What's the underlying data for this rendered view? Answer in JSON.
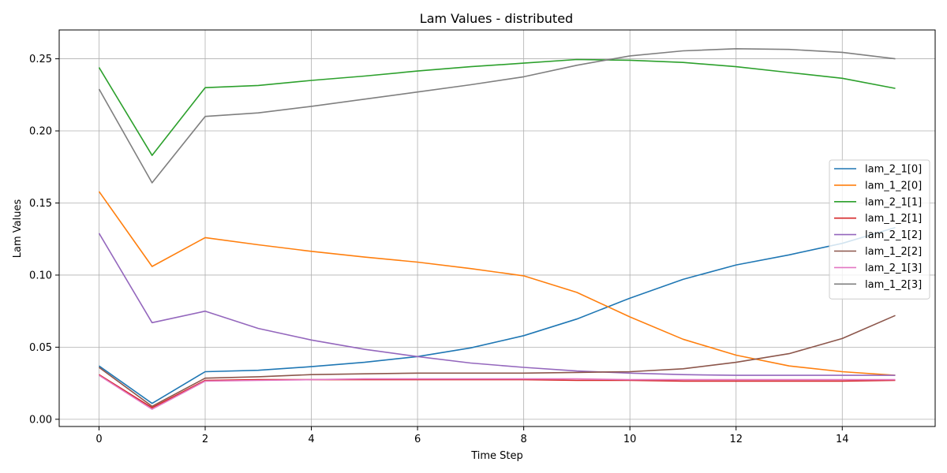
{
  "chart_data": {
    "type": "line",
    "title": "Lam Values - distributed",
    "xlabel": "Time Step",
    "ylabel": "Lam Values",
    "xlim": [
      -0.75,
      15.75
    ],
    "ylim": [
      -0.005,
      0.27
    ],
    "xticks": [
      "0",
      "2",
      "4",
      "6",
      "8",
      "10",
      "12",
      "14"
    ],
    "xtick_values": [
      0,
      2,
      4,
      6,
      8,
      10,
      12,
      14
    ],
    "yticks": [
      "0.00",
      "0.05",
      "0.10",
      "0.15",
      "0.20",
      "0.25"
    ],
    "ytick_values": [
      0.0,
      0.05,
      0.1,
      0.15,
      0.2,
      0.25
    ],
    "grid": true,
    "legend_position": "center-right",
    "x": [
      0,
      1,
      2,
      3,
      4,
      5,
      6,
      7,
      8,
      9,
      10,
      11,
      12,
      13,
      14,
      15
    ],
    "series": [
      {
        "name": "lam_2_1[0]",
        "color": "#1f77b4",
        "values": [
          0.037,
          0.011,
          0.033,
          0.034,
          0.0365,
          0.0395,
          0.0435,
          0.0495,
          0.058,
          0.0695,
          0.084,
          0.097,
          0.107,
          0.114,
          0.122,
          0.133
        ]
      },
      {
        "name": "lam_1_2[0]",
        "color": "#ff7f0e",
        "values": [
          0.158,
          0.106,
          0.126,
          0.121,
          0.1165,
          0.1125,
          0.109,
          0.1045,
          0.0995,
          0.088,
          0.071,
          0.0555,
          0.0445,
          0.037,
          0.033,
          0.0305
        ]
      },
      {
        "name": "lam_2_1[1]",
        "color": "#2ca02c",
        "values": [
          0.244,
          0.183,
          0.23,
          0.2315,
          0.235,
          0.238,
          0.2415,
          0.2445,
          0.247,
          0.2495,
          0.249,
          0.2475,
          0.2445,
          0.2405,
          0.2365,
          0.2295
        ]
      },
      {
        "name": "lam_1_2[1]",
        "color": "#d62728",
        "values": [
          0.031,
          0.008,
          0.027,
          0.0275,
          0.0275,
          0.0275,
          0.0275,
          0.0275,
          0.0275,
          0.027,
          0.027,
          0.0265,
          0.0265,
          0.0265,
          0.0265,
          0.027
        ]
      },
      {
        "name": "lam_2_1[2]",
        "color": "#9467bd",
        "values": [
          0.129,
          0.067,
          0.075,
          0.063,
          0.055,
          0.0485,
          0.0435,
          0.039,
          0.036,
          0.0335,
          0.032,
          0.031,
          0.0305,
          0.0305,
          0.0305,
          0.0305
        ]
      },
      {
        "name": "lam_1_2[2]",
        "color": "#8c564b",
        "values": [
          0.036,
          0.009,
          0.0285,
          0.0295,
          0.031,
          0.0315,
          0.032,
          0.032,
          0.032,
          0.0325,
          0.033,
          0.035,
          0.0395,
          0.0455,
          0.056,
          0.072
        ]
      },
      {
        "name": "lam_2_1[3]",
        "color": "#e377c2",
        "values": [
          0.0305,
          0.007,
          0.0265,
          0.027,
          0.0275,
          0.028,
          0.028,
          0.028,
          0.028,
          0.028,
          0.0275,
          0.0275,
          0.0275,
          0.0275,
          0.0275,
          0.0275
        ]
      },
      {
        "name": "lam_1_2[3]",
        "color": "#7f7f7f",
        "values": [
          0.229,
          0.164,
          0.21,
          0.2125,
          0.217,
          0.222,
          0.227,
          0.232,
          0.2375,
          0.2455,
          0.252,
          0.2555,
          0.257,
          0.2565,
          0.2545,
          0.25
        ]
      }
    ]
  }
}
